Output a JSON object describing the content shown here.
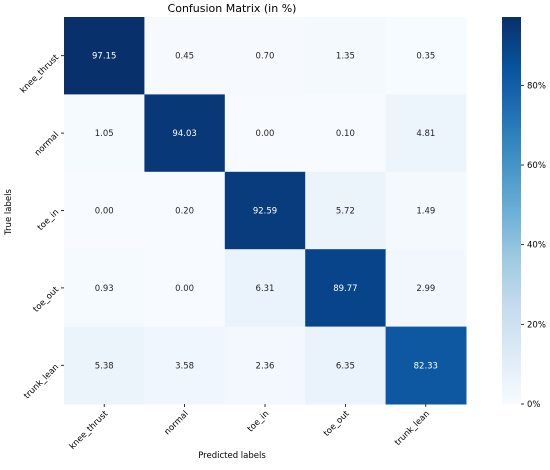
{
  "chart_data": {
    "type": "heatmap",
    "title": "Confusion Matrix (in %)",
    "xlabel": "Predicted labels",
    "ylabel": "True labels",
    "x_categories": [
      "knee_thrust",
      "normal",
      "toe_in",
      "toe_out",
      "trunk_lean"
    ],
    "y_categories": [
      "knee_thrust",
      "normal",
      "toe_in",
      "toe_out",
      "trunk_lean"
    ],
    "values": [
      [
        97.15,
        0.45,
        0.7,
        1.35,
        0.35
      ],
      [
        1.05,
        94.03,
        0.0,
        0.1,
        4.81
      ],
      [
        0.0,
        0.2,
        92.59,
        5.72,
        1.49
      ],
      [
        0.93,
        0.0,
        6.31,
        89.77,
        2.99
      ],
      [
        5.38,
        3.58,
        2.36,
        6.35,
        82.33
      ]
    ],
    "value_format_decimals": 2,
    "color_scale": {
      "name": "Blues",
      "min": 0,
      "max": 97.15,
      "low_color": "#f7fbff",
      "high_color": "#08306b"
    },
    "colorbar": {
      "ticks": [
        0,
        20,
        40,
        60,
        80
      ],
      "tick_labels": [
        "0%",
        "20%",
        "40%",
        "60%",
        "80%"
      ]
    },
    "grid": true,
    "legend": "colorbar-right"
  }
}
